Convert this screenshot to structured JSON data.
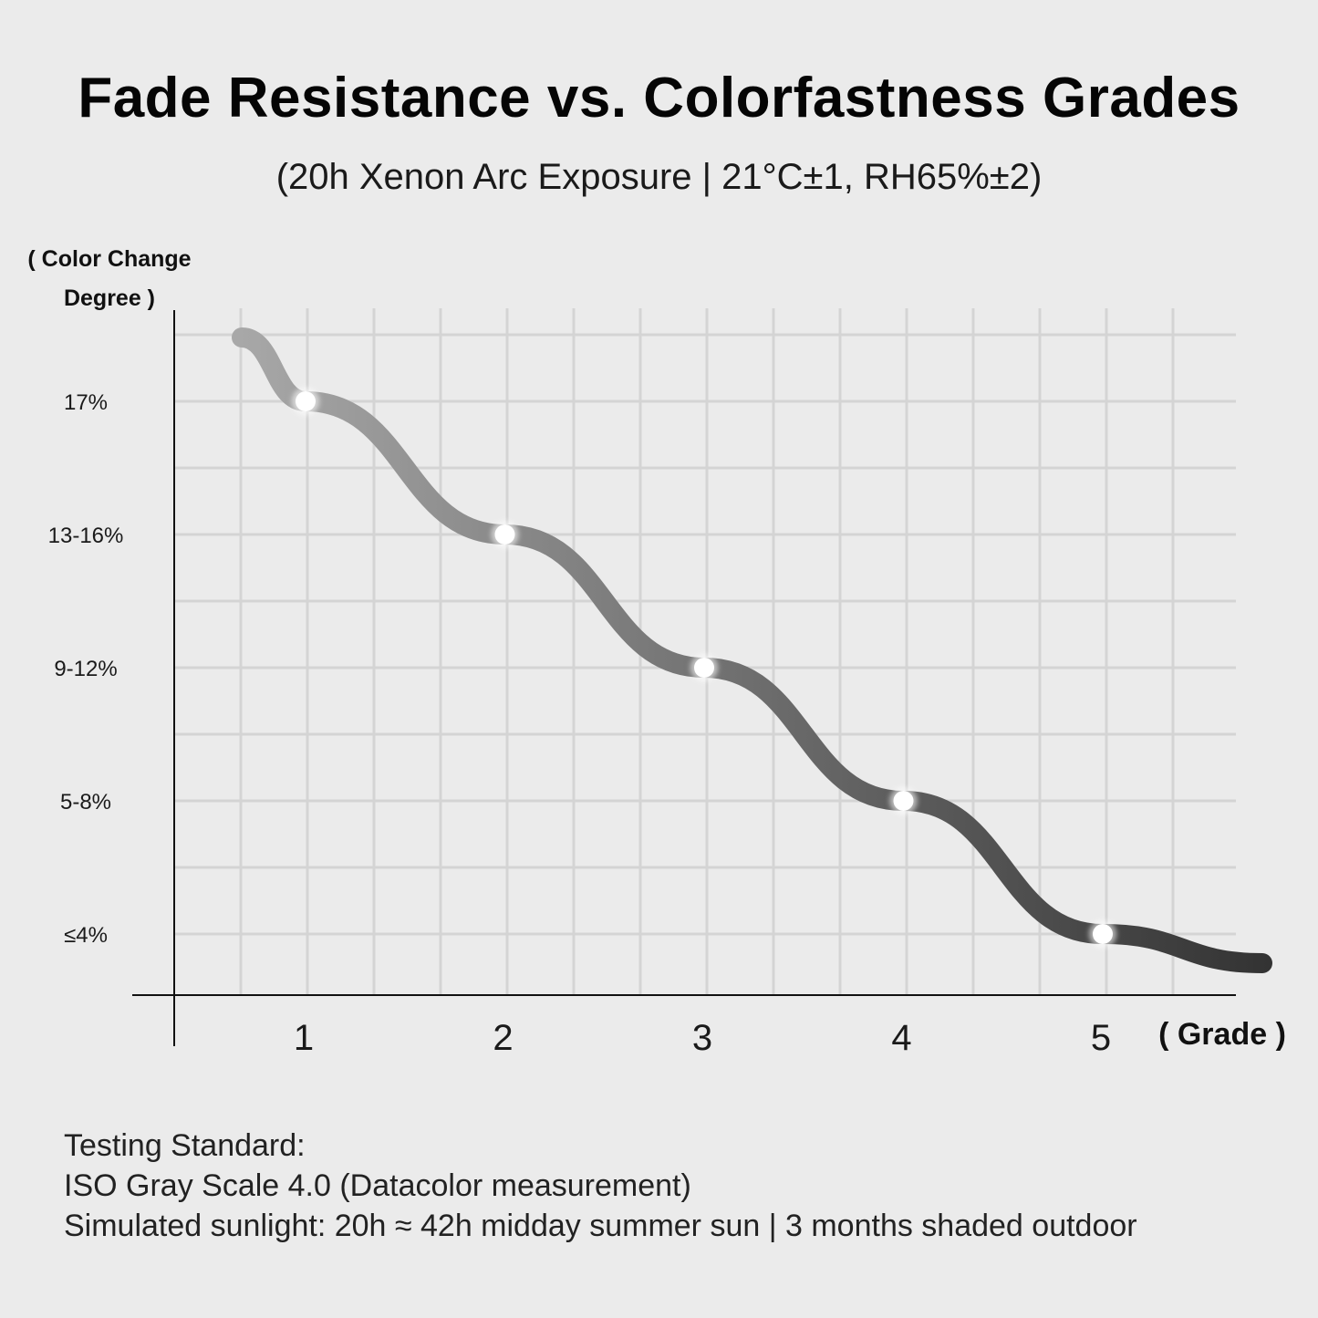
{
  "title": "Fade Resistance vs. Colorfastness Grades",
  "subtitle": "(20h Xenon Arc Exposure | 21°C±1, RH65%±2)",
  "notes": [
    "Testing Standard:",
    "ISO Gray Scale 4.0 (Datacolor measurement)",
    "Simulated sunlight: 20h ≈ 42h midday summer sun | 3 months shaded outdoor"
  ],
  "chart_data": {
    "type": "line",
    "xlabel": "( Grade )",
    "ylabel_lines": [
      "( Color Change",
      "Degree )"
    ],
    "x_ticks": [
      "1",
      "2",
      "3",
      "4",
      "5"
    ],
    "y_ticks": [
      "≤4%",
      "5-8%",
      "9-12%",
      "13-16%",
      "17%"
    ],
    "series": [
      {
        "x": [
          1,
          2,
          3,
          4,
          5
        ],
        "y": [
          "17%",
          "13-16%",
          "9-12%",
          "5-8%",
          "≤4%"
        ],
        "y_level": [
          5,
          4,
          3,
          2,
          1
        ]
      }
    ],
    "line_colors": [
      "#a8a8a8",
      "#333333"
    ],
    "marker_color": "#ffffff",
    "grid": true
  }
}
